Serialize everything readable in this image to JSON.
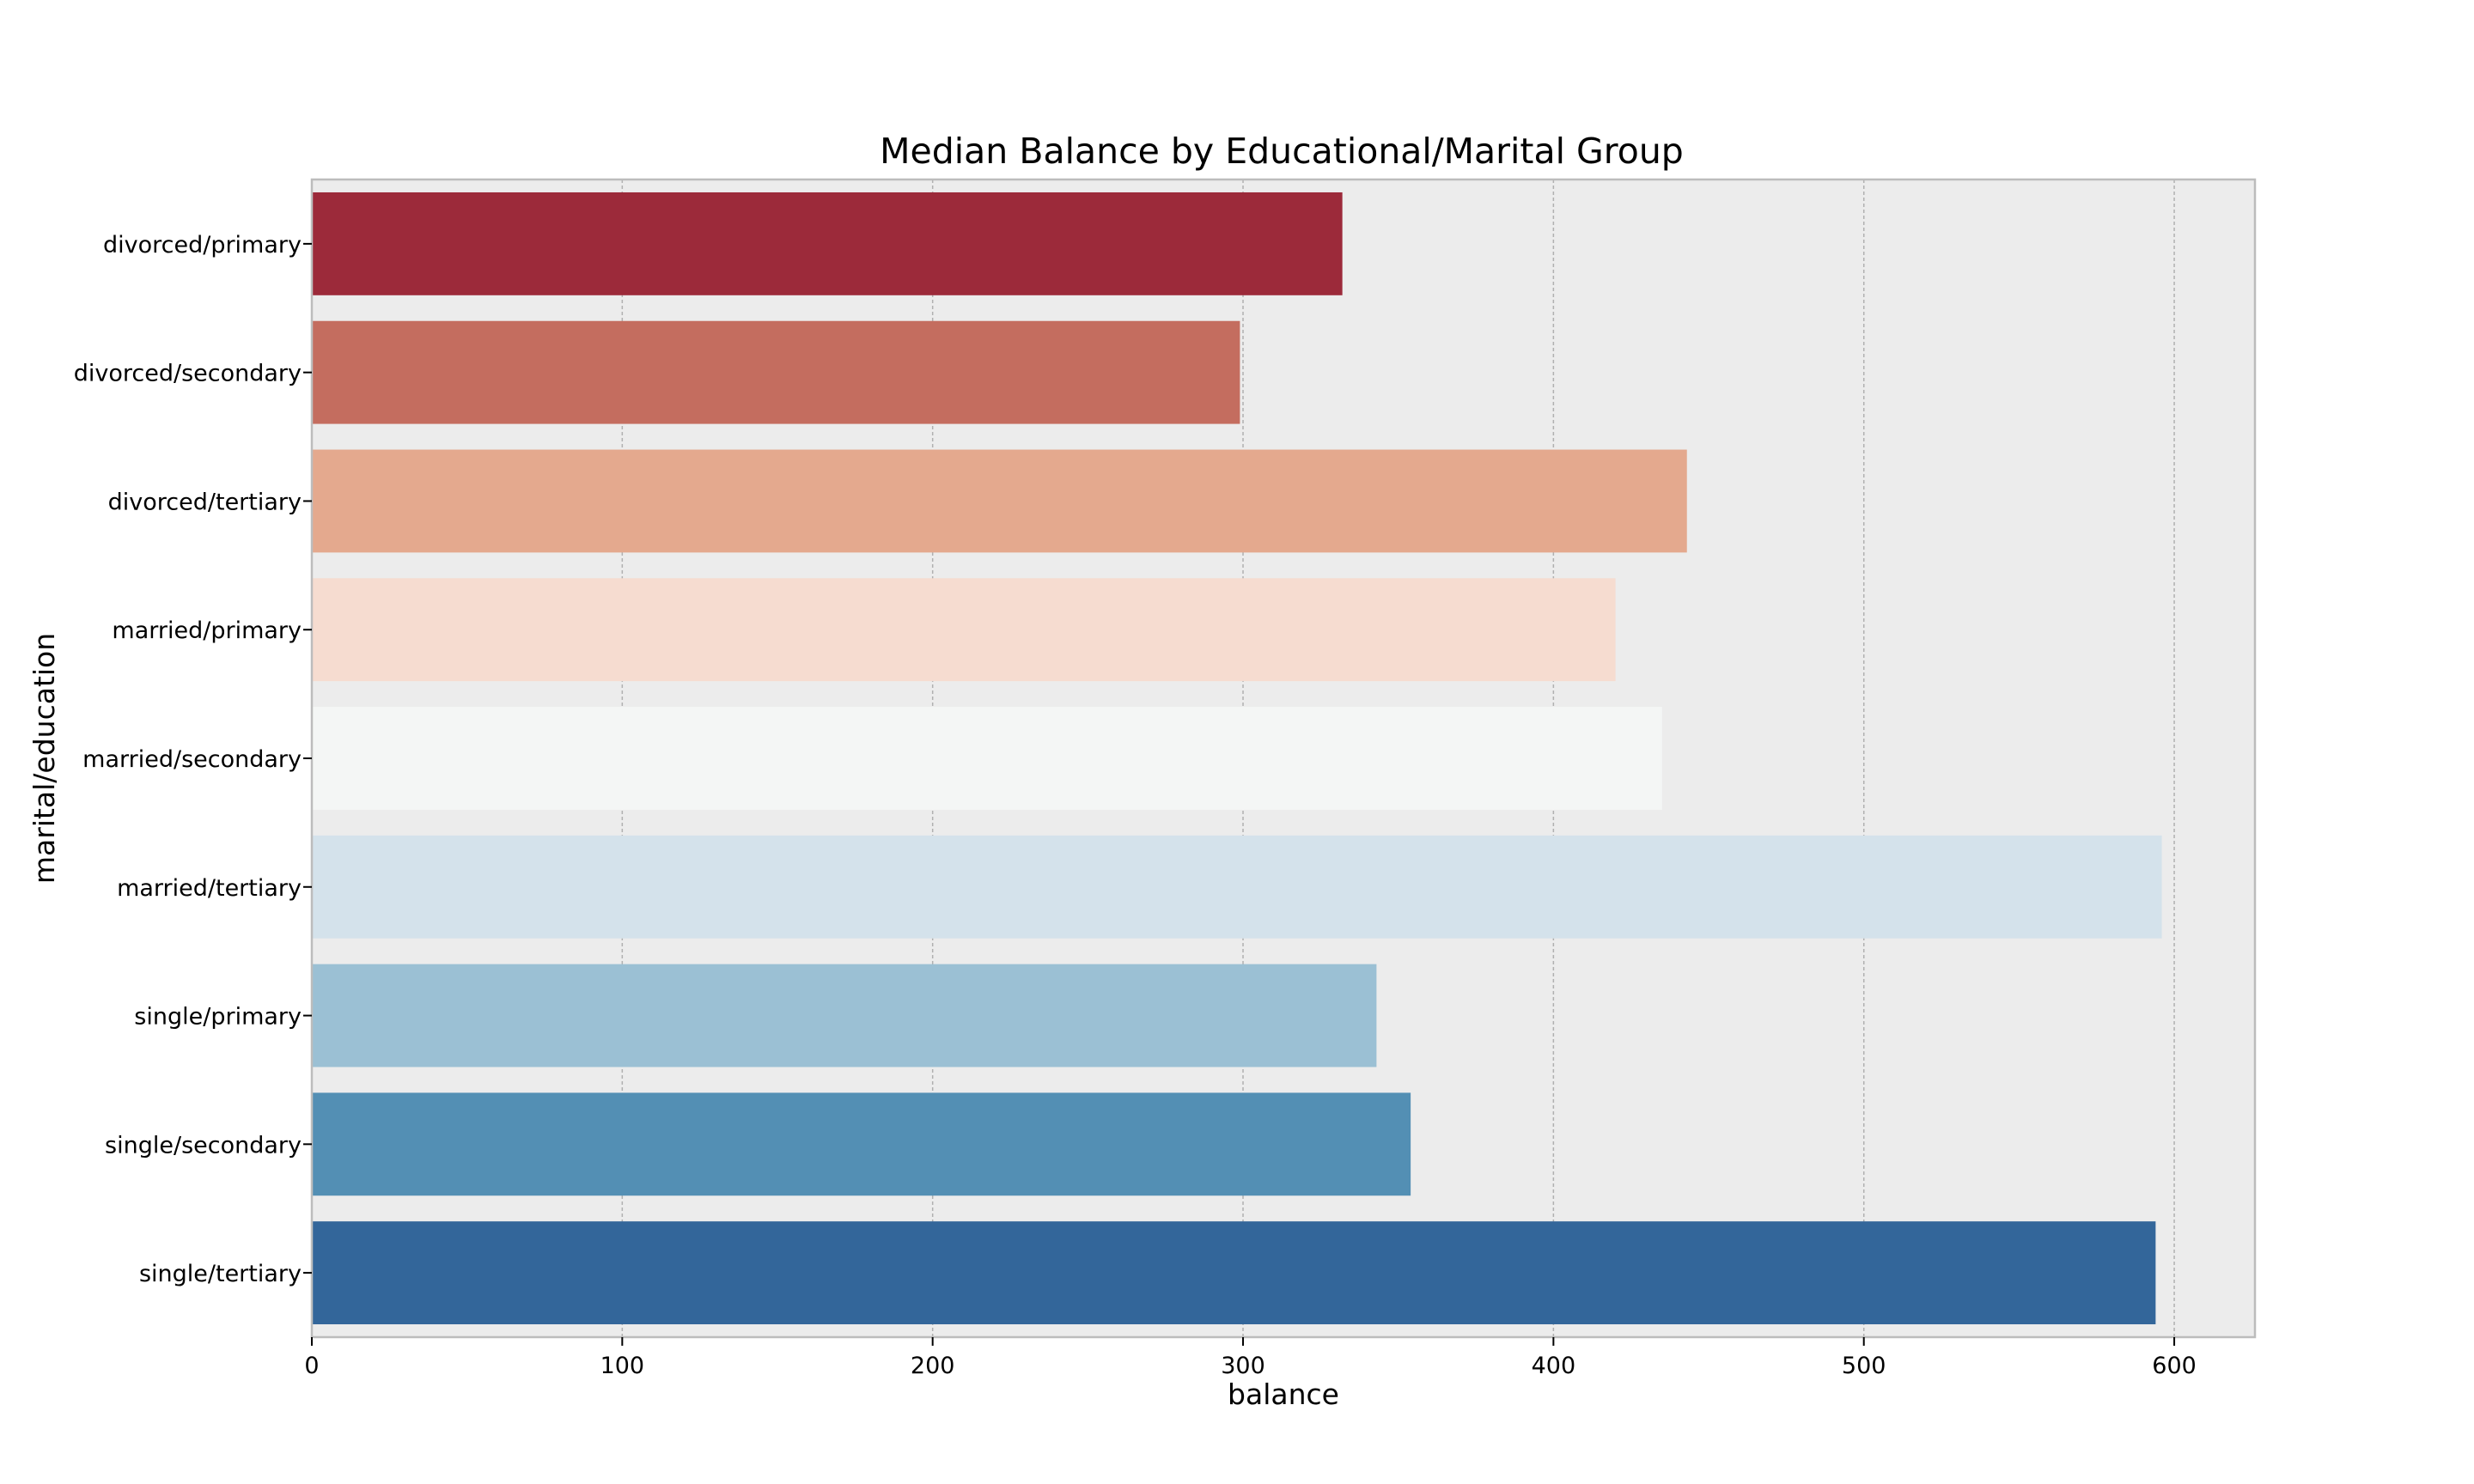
{
  "chart_data": {
    "type": "bar",
    "orientation": "horizontal",
    "title": "Median Balance by Educational/Marital Group",
    "xlabel": "balance",
    "ylabel": "marital/education",
    "categories": [
      "divorced/primary",
      "divorced/secondary",
      "divorced/tertiary",
      "married/primary",
      "married/secondary",
      "married/tertiary",
      "single/primary",
      "single/secondary",
      "single/tertiary"
    ],
    "values": [
      332,
      299,
      443,
      420,
      435,
      596,
      343,
      354,
      594
    ],
    "colors": [
      "#9c2a3a",
      "#c46d5f",
      "#e4a98e",
      "#f6dcd0",
      "#f4f6f5",
      "#d4e2eb",
      "#9bc0d4",
      "#538fb4",
      "#33669a"
    ],
    "xlim": [
      0,
      626
    ],
    "xticks": [
      0,
      100,
      200,
      300,
      400,
      500,
      600
    ],
    "grid": "x",
    "background_color": "#ececec",
    "grid_color": "#b0b0b0"
  }
}
